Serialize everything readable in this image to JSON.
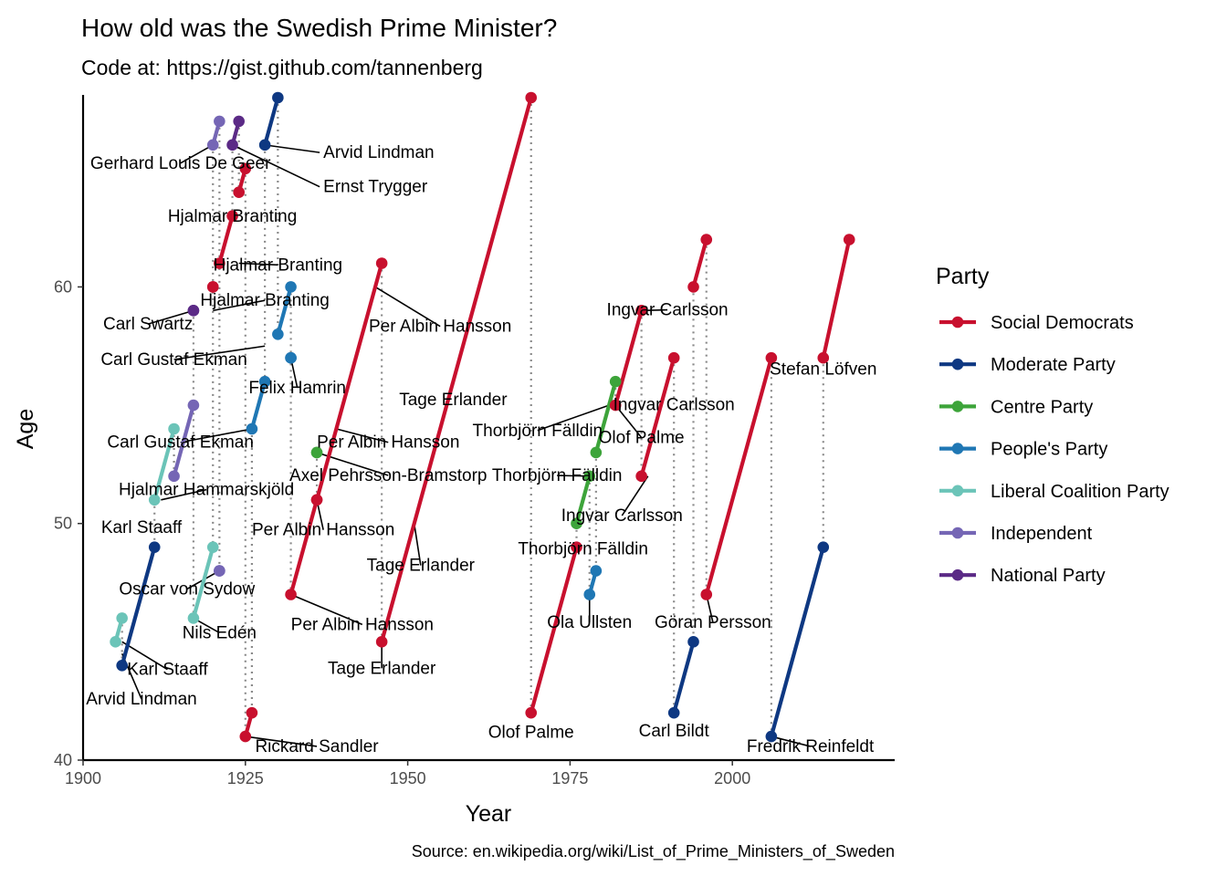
{
  "chart_data": {
    "type": "line",
    "title": "How old was the Swedish Prime Minister?",
    "subtitle": "Code at: https://gist.github.com/tannenberg",
    "caption": "Source: en.wikipedia.org/wiki/List_of_Prime_Ministers_of_Sweden",
    "xlabel": "Year",
    "ylabel": "Age",
    "xlim": [
      1900,
      2025
    ],
    "ylim": [
      40,
      68
    ],
    "x_ticks": [
      "1900",
      "1925",
      "1950",
      "1975",
      "2000"
    ],
    "y_ticks": [
      "40",
      "50",
      "60"
    ],
    "grid": false,
    "legend": {
      "title": "Party",
      "position": "right",
      "entries": [
        {
          "name": "Social Democrats",
          "color": "#C8102E"
        },
        {
          "name": "Moderate Party",
          "color": "#0E3882"
        },
        {
          "name": "Centre Party",
          "color": "#3DA43A"
        },
        {
          "name": "People's Party",
          "color": "#1F77B4"
        },
        {
          "name": "Liberal Coalition Party",
          "color": "#6BC4B8"
        },
        {
          "name": "Independent",
          "color": "#7566B5"
        },
        {
          "name": "National Party",
          "color": "#5B2A86"
        }
      ]
    },
    "terms": [
      {
        "party": "Moderate Party",
        "start": [
          1906,
          44
        ],
        "end": [
          1911,
          49
        ]
      },
      {
        "party": "Moderate Party",
        "start": [
          1928,
          66
        ],
        "end": [
          1930,
          68
        ]
      },
      {
        "party": "Liberal Coalition Party",
        "start": [
          1905,
          45
        ],
        "end": [
          1906,
          46
        ]
      },
      {
        "party": "Liberal Coalition Party",
        "start": [
          1911,
          51
        ],
        "end": [
          1914,
          54
        ]
      },
      {
        "party": "Liberal Coalition Party",
        "start": [
          1917,
          46
        ],
        "end": [
          1920,
          49
        ]
      },
      {
        "party": "Independent",
        "start": [
          1914,
          52
        ],
        "end": [
          1917,
          55
        ]
      },
      {
        "party": "Independent",
        "start": [
          1920,
          66
        ],
        "end": [
          1921,
          67
        ]
      },
      {
        "party": "Independent",
        "start": [
          1921,
          48
        ],
        "end": [
          1921,
          48
        ]
      },
      {
        "party": "National Party",
        "start": [
          1917,
          59
        ],
        "end": [
          1917,
          59
        ]
      },
      {
        "party": "National Party",
        "start": [
          1923,
          66
        ],
        "end": [
          1924,
          67
        ]
      },
      {
        "party": "Social Democrats",
        "start": [
          1920,
          60
        ],
        "end": [
          1920,
          60
        ]
      },
      {
        "party": "Social Democrats",
        "start": [
          1921,
          61
        ],
        "end": [
          1923,
          63
        ]
      },
      {
        "party": "Social Democrats",
        "start": [
          1924,
          64
        ],
        "end": [
          1925,
          65
        ]
      },
      {
        "party": "Social Democrats",
        "start": [
          1925,
          41
        ],
        "end": [
          1926,
          42
        ]
      },
      {
        "party": "People's Party",
        "start": [
          1926,
          54
        ],
        "end": [
          1928,
          56
        ]
      },
      {
        "party": "People's Party",
        "start": [
          1930,
          58
        ],
        "end": [
          1932,
          60
        ]
      },
      {
        "party": "People's Party",
        "start": [
          1932,
          57
        ],
        "end": [
          1932,
          57
        ]
      },
      {
        "party": "Social Democrats",
        "start": [
          1932,
          47
        ],
        "end": [
          1936,
          51
        ]
      },
      {
        "party": "Centre Party",
        "start": [
          1936,
          53
        ],
        "end": [
          1936,
          53
        ]
      },
      {
        "party": "Social Democrats",
        "start": [
          1936,
          51
        ],
        "end": [
          1946,
          61
        ]
      },
      {
        "party": "Social Democrats",
        "start": [
          1946,
          45
        ],
        "end": [
          1969,
          68
        ]
      },
      {
        "party": "Social Democrats",
        "start": [
          1969,
          42
        ],
        "end": [
          1976,
          49
        ]
      },
      {
        "party": "Centre Party",
        "start": [
          1976,
          50
        ],
        "end": [
          1978,
          52
        ]
      },
      {
        "party": "People's Party",
        "start": [
          1978,
          47
        ],
        "end": [
          1979,
          48
        ]
      },
      {
        "party": "Centre Party",
        "start": [
          1979,
          53
        ],
        "end": [
          1982,
          56
        ]
      },
      {
        "party": "Social Democrats",
        "start": [
          1982,
          55
        ],
        "end": [
          1986,
          59
        ]
      },
      {
        "party": "Social Democrats",
        "start": [
          1986,
          52
        ],
        "end": [
          1991,
          57
        ]
      },
      {
        "party": "Moderate Party",
        "start": [
          1991,
          42
        ],
        "end": [
          1994,
          45
        ]
      },
      {
        "party": "Social Democrats",
        "start": [
          1994,
          60
        ],
        "end": [
          1996,
          62
        ]
      },
      {
        "party": "Social Democrats",
        "start": [
          1996,
          47
        ],
        "end": [
          2006,
          57
        ]
      },
      {
        "party": "Moderate Party",
        "start": [
          2006,
          41
        ],
        "end": [
          2014,
          49
        ]
      },
      {
        "party": "Social Democrats",
        "start": [
          2014,
          57
        ],
        "end": [
          2018,
          62
        ]
      }
    ],
    "dotted_transitions": [
      1905,
      1906,
      1911,
      1914,
      1917,
      1920,
      1921,
      1923,
      1924,
      1925,
      1926,
      1928,
      1930,
      1932,
      1936,
      1946,
      1969,
      1976,
      1978,
      1979,
      1982,
      1986,
      1991,
      1994,
      1996,
      2006,
      2014
    ],
    "labels": [
      {
        "text": "Arvid Lindman",
        "x": 1928,
        "y": 66,
        "lx": 1937,
        "ly": 65.45,
        "anchor": "start"
      },
      {
        "text": "Gerhard Louis De Geer",
        "x": 1920,
        "y": 66,
        "lx": 1915,
        "ly": 65.0,
        "anchor": "middle"
      },
      {
        "text": "Ernst Trygger",
        "x": 1923,
        "y": 66,
        "lx": 1937,
        "ly": 64.0,
        "anchor": "start"
      },
      {
        "text": "Hjalmar Branting",
        "x": 1921,
        "y": 63,
        "lx": 1923,
        "ly": 62.75,
        "anchor": "middle"
      },
      {
        "text": "Hjalmar Branting",
        "x": 1924,
        "y": 61,
        "lx": 1930,
        "ly": 60.7,
        "anchor": "middle"
      },
      {
        "text": "Hjalmar Branting",
        "x": 1920,
        "y": 59,
        "lx": 1928,
        "ly": 59.2,
        "anchor": "middle"
      },
      {
        "text": "Carl Swartz",
        "x": 1917,
        "y": 59,
        "lx": 1910,
        "ly": 58.2,
        "anchor": "middle"
      },
      {
        "text": "Per Albin Hansson",
        "x": 1945,
        "y": 60,
        "lx": 1955,
        "ly": 58.1,
        "anchor": "middle"
      },
      {
        "text": "Carl Gustaf Ekman",
        "x": 1928,
        "y": 57.5,
        "lx": 1914,
        "ly": 56.7,
        "anchor": "middle"
      },
      {
        "text": "Felix Hamrin",
        "x": 1932,
        "y": 57,
        "lx": 1933,
        "ly": 55.5,
        "anchor": "middle"
      },
      {
        "text": "Tage Erlander",
        "x": 1957,
        "y": 56,
        "lx": 1957,
        "ly": 55.0,
        "anchor": "middle"
      },
      {
        "text": "Ingvar Carlsson",
        "x": 1986,
        "y": 59,
        "lx": 1990,
        "ly": 58.8,
        "anchor": "middle"
      },
      {
        "text": "Stefan Löfven",
        "x": 2014,
        "y": 57,
        "lx": 2014,
        "ly": 56.3,
        "anchor": "middle"
      },
      {
        "text": "Ingvar Carlsson",
        "x": 1990,
        "y": 56,
        "lx": 1991,
        "ly": 54.8,
        "anchor": "middle"
      },
      {
        "text": "Thorbjörn Fälldin",
        "x": 1981,
        "y": 55,
        "lx": 1970,
        "ly": 53.7,
        "anchor": "middle"
      },
      {
        "text": "Olof Palme",
        "x": 1982,
        "y": 55,
        "lx": 1986,
        "ly": 53.4,
        "anchor": "middle"
      },
      {
        "text": "Carl Gustaf Ekman",
        "x": 1926,
        "y": 54,
        "lx": 1915,
        "ly": 53.2,
        "anchor": "middle"
      },
      {
        "text": "Per Albin Hansson",
        "x": 1939,
        "y": 54,
        "lx": 1947,
        "ly": 53.2,
        "anchor": "middle"
      },
      {
        "text": "Axel Pehrsson-Bramstorp",
        "x": 1936,
        "y": 53,
        "lx": 1947,
        "ly": 51.8,
        "anchor": "middle"
      },
      {
        "text": "Thorbjörn Fälldin",
        "x": 1978,
        "y": 52,
        "lx": 1973,
        "ly": 51.8,
        "anchor": "middle"
      },
      {
        "text": "Hjalmar Hammarskjöld",
        "x": 1912,
        "y": 51,
        "lx": 1919,
        "ly": 51.2,
        "anchor": "middle"
      },
      {
        "text": "Ingvar Carlsson",
        "x": 1987,
        "y": 52,
        "lx": 1983,
        "ly": 50.1,
        "anchor": "middle"
      },
      {
        "text": "Karl Staaff",
        "x": 1911,
        "y": 49,
        "lx": 1909,
        "ly": 49.6,
        "anchor": "middle"
      },
      {
        "text": "Per Albin Hansson",
        "x": 1936,
        "y": 51,
        "lx": 1937,
        "ly": 49.5,
        "anchor": "middle"
      },
      {
        "text": "Thorbjörn Fälldin",
        "x": 1976,
        "y": 49,
        "lx": 1977,
        "ly": 48.7,
        "anchor": "middle"
      },
      {
        "text": "Tage Erlander",
        "x": 1951,
        "y": 50,
        "lx": 1952,
        "ly": 48.0,
        "anchor": "middle"
      },
      {
        "text": "Oscar von Sydow",
        "x": 1921,
        "y": 48,
        "lx": 1916,
        "ly": 47.0,
        "anchor": "middle"
      },
      {
        "text": "Per Albin Hansson",
        "x": 1932,
        "y": 47,
        "lx": 1943,
        "ly": 45.5,
        "anchor": "middle"
      },
      {
        "text": "Ola Ullsten",
        "x": 1978,
        "y": 47,
        "lx": 1978,
        "ly": 45.6,
        "anchor": "middle"
      },
      {
        "text": "Göran Persson",
        "x": 1996,
        "y": 47,
        "lx": 1997,
        "ly": 45.6,
        "anchor": "middle"
      },
      {
        "text": "Nils Edén",
        "x": 1917,
        "y": 46,
        "lx": 1921,
        "ly": 45.15,
        "anchor": "middle"
      },
      {
        "text": "Karl Staaff",
        "x": 1906,
        "y": 45,
        "lx": 1913,
        "ly": 43.6,
        "anchor": "middle"
      },
      {
        "text": "Tage Erlander",
        "x": 1946,
        "y": 45,
        "lx": 1946,
        "ly": 43.65,
        "anchor": "middle"
      },
      {
        "text": "Arvid Lindman",
        "x": 1906,
        "y": 44.5,
        "lx": 1909,
        "ly": 42.35,
        "anchor": "middle"
      },
      {
        "text": "Olof Palme",
        "x": 1969,
        "y": 42,
        "lx": 1969,
        "ly": 40.95,
        "anchor": "middle"
      },
      {
        "text": "Carl Bildt",
        "x": 1991,
        "y": 42,
        "lx": 1991,
        "ly": 41.0,
        "anchor": "middle"
      },
      {
        "text": "Rickard Sandler",
        "x": 1925,
        "y": 41,
        "lx": 1936,
        "ly": 40.35,
        "anchor": "middle"
      },
      {
        "text": "Fredrik Reinfeldt",
        "x": 2006,
        "y": 41,
        "lx": 2012,
        "ly": 40.35,
        "anchor": "middle"
      }
    ]
  }
}
